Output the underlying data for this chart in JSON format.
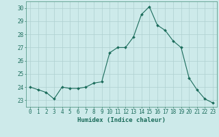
{
  "x": [
    0,
    1,
    2,
    3,
    4,
    5,
    6,
    7,
    8,
    9,
    10,
    11,
    12,
    13,
    14,
    15,
    16,
    17,
    18,
    19,
    20,
    21,
    22,
    23
  ],
  "y": [
    24.0,
    23.8,
    23.6,
    23.1,
    24.0,
    23.9,
    23.9,
    24.0,
    24.3,
    24.4,
    26.6,
    27.0,
    27.0,
    27.8,
    29.5,
    30.1,
    28.7,
    28.3,
    27.5,
    27.0,
    24.7,
    23.8,
    23.1,
    22.8
  ],
  "line_color": "#1a6b5a",
  "marker": "D",
  "marker_size": 2.0,
  "bg_color": "#cdeaea",
  "grid_color": "#aed0d0",
  "xlabel": "Humidex (Indice chaleur)",
  "xlim": [
    -0.5,
    23.5
  ],
  "ylim": [
    22.5,
    30.5
  ],
  "yticks": [
    23,
    24,
    25,
    26,
    27,
    28,
    29,
    30
  ],
  "xticks": [
    0,
    1,
    2,
    3,
    4,
    5,
    6,
    7,
    8,
    9,
    10,
    11,
    12,
    13,
    14,
    15,
    16,
    17,
    18,
    19,
    20,
    21,
    22,
    23
  ],
  "tick_color": "#1a6b5a",
  "label_fontsize": 5.5,
  "xlabel_fontsize": 6.5,
  "axis_color": "#5a9a8a"
}
